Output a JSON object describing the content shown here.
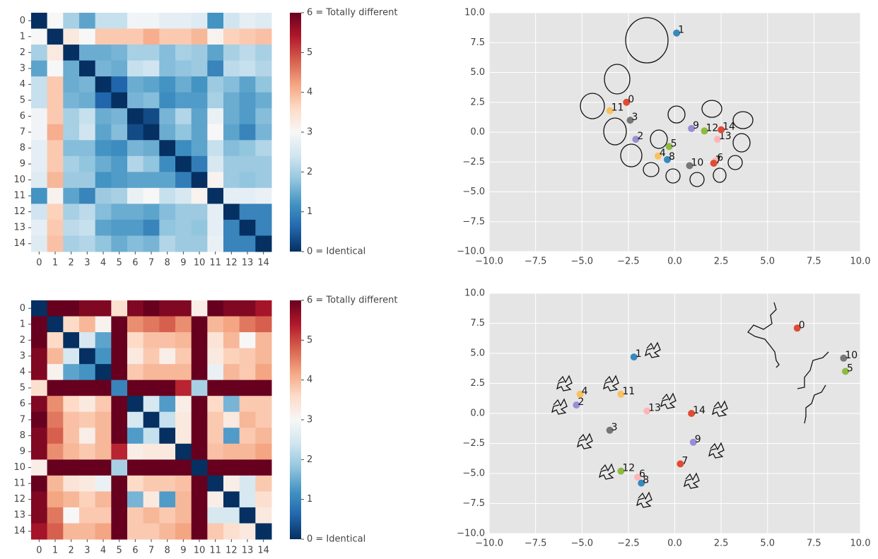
{
  "chart_data": [
    {
      "type": "heatmap",
      "x": [
        "0",
        "1",
        "2",
        "3",
        "4",
        "5",
        "6",
        "7",
        "8",
        "9",
        "10",
        "11",
        "12",
        "13",
        "14"
      ],
      "y": [
        "0",
        "1",
        "2",
        "3",
        "4",
        "5",
        "6",
        "7",
        "8",
        "9",
        "10",
        "11",
        "12",
        "13",
        "14"
      ],
      "values": [
        [
          0,
          3.0,
          2.0,
          1.4,
          2.3,
          2.3,
          2.9,
          2.9,
          2.7,
          2.7,
          2.6,
          1.2,
          2.4,
          2.7,
          2.6
        ],
        [
          3.0,
          0,
          3.3,
          3.0,
          3.8,
          3.8,
          3.8,
          4.1,
          3.8,
          3.8,
          4.0,
          3.1,
          3.7,
          3.8,
          3.9
        ],
        [
          2.0,
          3.3,
          0,
          1.5,
          1.5,
          1.6,
          2.0,
          2.0,
          1.7,
          2.0,
          1.9,
          1.4,
          2.0,
          2.2,
          2.0
        ],
        [
          1.4,
          3.0,
          1.5,
          0,
          1.6,
          1.5,
          2.3,
          2.4,
          1.7,
          1.8,
          1.9,
          1.0,
          2.2,
          2.3,
          2.1
        ],
        [
          2.3,
          3.8,
          1.5,
          1.6,
          0,
          0.6,
          1.5,
          1.4,
          1.2,
          1.5,
          1.2,
          1.9,
          1.7,
          1.4,
          1.8
        ],
        [
          2.3,
          3.8,
          1.6,
          1.5,
          0.6,
          0,
          1.6,
          1.7,
          1.1,
          1.3,
          1.3,
          2.0,
          1.5,
          1.3,
          1.5
        ],
        [
          2.9,
          3.8,
          2.0,
          2.3,
          1.5,
          1.6,
          0,
          0.3,
          1.6,
          2.1,
          1.4,
          2.8,
          1.5,
          1.3,
          1.7
        ],
        [
          2.9,
          4.1,
          2.0,
          2.4,
          1.4,
          1.7,
          0.3,
          0,
          1.5,
          1.8,
          1.4,
          3.0,
          1.4,
          1.0,
          1.6
        ],
        [
          2.7,
          3.8,
          1.7,
          1.7,
          1.2,
          1.1,
          1.6,
          1.5,
          0,
          1.1,
          1.4,
          2.3,
          1.7,
          1.8,
          2.1
        ],
        [
          2.7,
          3.8,
          2.0,
          1.8,
          1.5,
          1.3,
          2.1,
          1.8,
          1.1,
          0,
          0.9,
          2.5,
          1.9,
          1.9,
          1.9
        ],
        [
          2.6,
          4.0,
          1.9,
          1.9,
          1.2,
          1.3,
          1.4,
          1.4,
          1.4,
          0.9,
          0,
          3.1,
          1.9,
          1.8,
          1.9
        ],
        [
          1.2,
          3.1,
          1.4,
          1.0,
          1.9,
          2.0,
          2.8,
          3.0,
          2.3,
          2.5,
          3.1,
          0,
          2.7,
          2.7,
          2.8
        ],
        [
          2.4,
          3.7,
          2.0,
          2.2,
          1.7,
          1.5,
          1.5,
          1.4,
          1.7,
          1.9,
          1.9,
          2.7,
          0,
          1.0,
          1.0
        ],
        [
          2.7,
          3.8,
          2.2,
          2.3,
          1.4,
          1.3,
          1.3,
          1.0,
          1.8,
          1.9,
          1.8,
          2.7,
          1.0,
          0,
          1.0
        ],
        [
          2.6,
          3.9,
          2.0,
          2.1,
          1.8,
          1.5,
          1.7,
          1.6,
          2.1,
          1.9,
          1.9,
          2.8,
          1.0,
          1.0,
          0
        ]
      ],
      "zlim": [
        0,
        6
      ],
      "zticks": [
        {
          "value": 0,
          "label": "0 = Identical"
        },
        1,
        2,
        3,
        4,
        5,
        {
          "value": 6,
          "label": "6 = Totally different"
        }
      ],
      "colorscale": [
        "#053061",
        "#2166ac",
        "#4393c3",
        "#92c5de",
        "#d1e5f0",
        "#f7f7f7",
        "#fddbc7",
        "#f4a582",
        "#d6604d",
        "#b2182b",
        "#67001f"
      ]
    },
    {
      "type": "scatter",
      "x": [
        -2.6,
        0.1,
        -2.1,
        -2.4,
        -0.9,
        -0.3,
        2.2,
        2.1,
        -0.4,
        0.9,
        0.8,
        -3.5,
        1.6,
        2.3,
        2.5
      ],
      "y": [
        2.5,
        8.3,
        -0.6,
        1.0,
        -2.0,
        -1.2,
        -2.4,
        -2.6,
        -2.3,
        0.3,
        -2.8,
        1.8,
        0.1,
        -0.6,
        0.2
      ],
      "labels": [
        "0",
        "1",
        "2",
        "3",
        "4",
        "5",
        "6",
        "7",
        "8",
        "9",
        "10",
        "11",
        "12",
        "13",
        "14"
      ],
      "colors": [
        "#E24A33",
        "#348ABD",
        "#988ED5",
        "#777777",
        "#FBC15E",
        "#8EBA42",
        "#FFB5B8",
        "#E24A33",
        "#348ABD",
        "#988ED5",
        "#777777",
        "#FBC15E",
        "#8EBA42",
        "#FFB5B8",
        "#E24A33"
      ],
      "xlim": [
        -10,
        10
      ],
      "ylim": [
        -10,
        10
      ],
      "xticks": [
        {
          "value": -10,
          "label": "−10.0"
        },
        {
          "value": -7.5,
          "label": "−7.5"
        },
        {
          "value": -5,
          "label": "−5.0"
        },
        {
          "value": -2.5,
          "label": "−2.5"
        },
        {
          "value": 0,
          "label": "0.0"
        },
        2.5,
        {
          "value": 5,
          "label": "5.0"
        },
        7.5,
        {
          "value": 10,
          "label": "10.0"
        }
      ],
      "yticks": [
        {
          "value": -10,
          "label": "−10.0"
        },
        {
          "value": -7.5,
          "label": "−7.5"
        },
        {
          "value": -5,
          "label": "−5.0"
        },
        {
          "value": -2.5,
          "label": "−2.5"
        },
        {
          "value": 0,
          "label": "0.0"
        },
        2.5,
        {
          "value": 5,
          "label": "5.0"
        },
        7.5,
        {
          "value": 10,
          "label": "10.0"
        }
      ],
      "grid": true
    },
    {
      "type": "heatmap",
      "x": [
        "0",
        "1",
        "2",
        "3",
        "4",
        "5",
        "6",
        "7",
        "8",
        "9",
        "10",
        "11",
        "12",
        "13",
        "14"
      ],
      "y": [
        "0",
        "1",
        "2",
        "3",
        "4",
        "5",
        "6",
        "7",
        "8",
        "9",
        "10",
        "11",
        "12",
        "13",
        "14"
      ],
      "values": [
        [
          0,
          6,
          6,
          5.8,
          5.8,
          3.5,
          5.8,
          6,
          5.8,
          5.8,
          3.2,
          6,
          5.8,
          5.8,
          5.5
        ],
        [
          6,
          0,
          3.6,
          4.0,
          3.1,
          6,
          4.4,
          4.6,
          4.8,
          4.4,
          6,
          4.0,
          4.2,
          4.6,
          4.8
        ],
        [
          6,
          3.6,
          0,
          2.5,
          1.4,
          6,
          3.6,
          3.9,
          3.9,
          4.0,
          6,
          3.4,
          4.0,
          3.0,
          4.0
        ],
        [
          5.8,
          4.0,
          2.5,
          0,
          1.2,
          6,
          3.3,
          3.8,
          3.2,
          3.8,
          6,
          3.3,
          3.7,
          3.8,
          4.0
        ],
        [
          5.8,
          3.1,
          1.4,
          1.2,
          0,
          6,
          3.8,
          4.0,
          4.0,
          4.0,
          6,
          2.8,
          4.0,
          3.8,
          4.2
        ],
        [
          3.5,
          6,
          6,
          6,
          6,
          1.0,
          6,
          6,
          6,
          5.3,
          2.0,
          6,
          6,
          6,
          6
        ],
        [
          5.8,
          4.4,
          3.6,
          3.3,
          3.8,
          6,
          0,
          2.5,
          1.3,
          3.2,
          6,
          3.6,
          1.6,
          3.8,
          3.8
        ],
        [
          6,
          4.6,
          3.9,
          3.8,
          4.0,
          6,
          2.5,
          0,
          2.3,
          3.3,
          6,
          3.8,
          3.3,
          4.0,
          3.8
        ],
        [
          5.8,
          4.8,
          3.9,
          3.2,
          4.0,
          6,
          1.3,
          2.3,
          0,
          3.3,
          6,
          3.8,
          1.3,
          3.8,
          4.0
        ],
        [
          5.8,
          4.4,
          4.0,
          3.8,
          4.0,
          5.3,
          3.2,
          3.3,
          3.3,
          0,
          6,
          3.9,
          4.0,
          4.0,
          4.2
        ],
        [
          3.2,
          6,
          6,
          6,
          6,
          2.0,
          6,
          6,
          6,
          6,
          0,
          6,
          6,
          6,
          6
        ],
        [
          6,
          4.0,
          3.4,
          3.3,
          2.8,
          6,
          3.6,
          3.8,
          3.8,
          3.9,
          6,
          0,
          3.2,
          2.5,
          3.8
        ],
        [
          5.8,
          4.2,
          4.0,
          3.7,
          4.0,
          6,
          1.6,
          3.3,
          1.3,
          4.0,
          6,
          3.2,
          0,
          2.5,
          3.5
        ],
        [
          5.8,
          4.6,
          3.0,
          3.8,
          3.8,
          6,
          3.8,
          4.0,
          3.8,
          4.0,
          6,
          2.5,
          2.5,
          0,
          3.3
        ],
        [
          5.5,
          4.8,
          4.0,
          4.0,
          4.2,
          6,
          3.8,
          3.8,
          4.0,
          4.2,
          6,
          3.8,
          3.5,
          3.3,
          0
        ]
      ],
      "zlim": [
        0,
        6
      ],
      "zticks": [
        {
          "value": 0,
          "label": "0 = Identical"
        },
        1,
        2,
        3,
        4,
        5,
        {
          "value": 6,
          "label": "6 = Totally different"
        }
      ],
      "colorscale": [
        "#053061",
        "#2166ac",
        "#4393c3",
        "#92c5de",
        "#d1e5f0",
        "#f7f7f7",
        "#fddbc7",
        "#f4a582",
        "#d6604d",
        "#b2182b",
        "#67001f"
      ]
    },
    {
      "type": "scatter",
      "x": [
        6.6,
        -2.2,
        -5.3,
        -3.5,
        -5.1,
        9.2,
        -2.0,
        0.3,
        -1.8,
        1.0,
        9.1,
        -2.9,
        -2.9,
        -1.5,
        0.9
      ],
      "y": [
        7.1,
        4.7,
        0.7,
        -1.4,
        1.6,
        3.5,
        -5.3,
        -4.2,
        -5.8,
        -2.4,
        4.6,
        1.6,
        -4.8,
        0.2,
        0.0
      ],
      "labels": [
        "0",
        "1",
        "2",
        "3",
        "4",
        "5",
        "6",
        "7",
        "8",
        "9",
        "10",
        "11",
        "12",
        "13",
        "14"
      ],
      "colors": [
        "#E24A33",
        "#348ABD",
        "#988ED5",
        "#777777",
        "#FBC15E",
        "#8EBA42",
        "#FFB5B8",
        "#E24A33",
        "#348ABD",
        "#988ED5",
        "#777777",
        "#FBC15E",
        "#8EBA42",
        "#FFB5B8",
        "#E24A33"
      ],
      "xlim": [
        -10,
        10
      ],
      "ylim": [
        -10,
        10
      ],
      "xticks": [
        {
          "value": -10,
          "label": "−10.0"
        },
        {
          "value": -7.5,
          "label": "−7.5"
        },
        {
          "value": -5,
          "label": "−5.0"
        },
        {
          "value": -2.5,
          "label": "−2.5"
        },
        {
          "value": 0,
          "label": "0.0"
        },
        2.5,
        {
          "value": 5,
          "label": "5.0"
        },
        7.5,
        {
          "value": 10,
          "label": "10.0"
        }
      ],
      "yticks": [
        {
          "value": -10,
          "label": "−10.0"
        },
        {
          "value": -7.5,
          "label": "−7.5"
        },
        {
          "value": -5,
          "label": "−5.0"
        },
        {
          "value": -2.5,
          "label": "−2.5"
        },
        {
          "value": 0,
          "label": "0.0"
        },
        2.5,
        {
          "value": 5,
          "label": "5.0"
        },
        7.5,
        {
          "value": 10,
          "label": "10.0"
        }
      ],
      "grid": true
    }
  ]
}
